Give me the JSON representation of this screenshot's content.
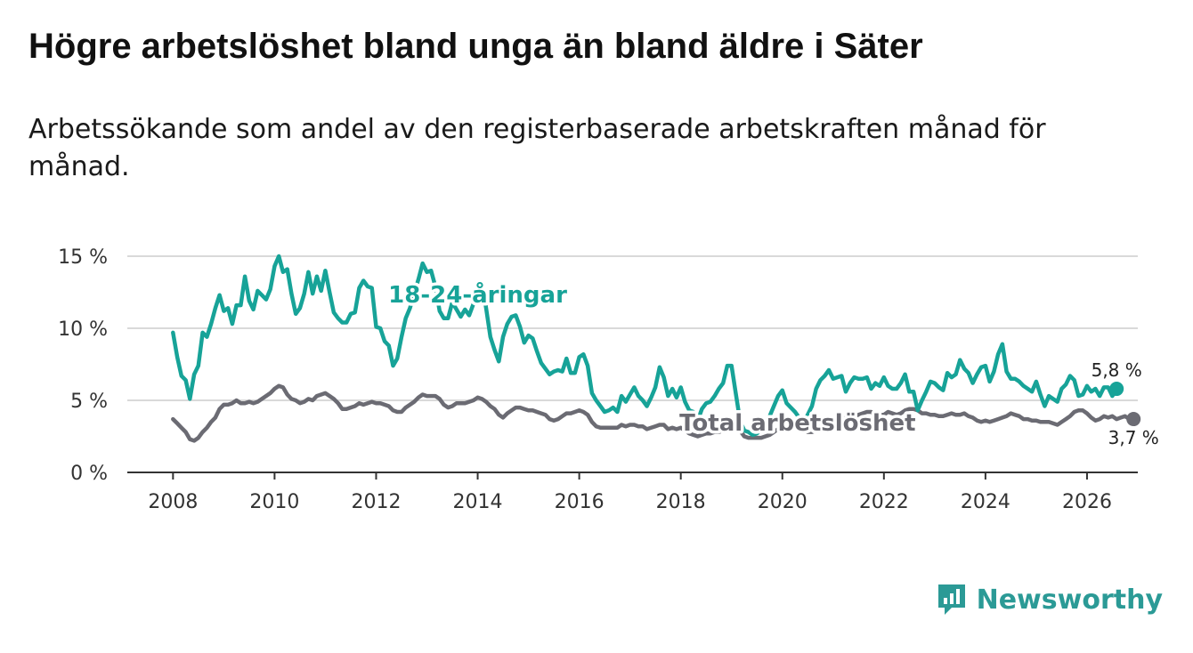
{
  "header": {
    "title": "Högre arbetslöshet bland unga än bland äldre i Säter",
    "subtitle": "Arbetssökande som andel av den registerbaserade arbetskraften månad för månad."
  },
  "brand": {
    "name": "Newsworthy",
    "icon": "newsworthy-logo-icon"
  },
  "colors": {
    "youth": "#17a398",
    "total": "#6b6b73",
    "grid": "#d9d9d9",
    "axis": "#333333"
  },
  "chart_data": {
    "type": "line",
    "title": "Högre arbetslöshet bland unga än bland äldre i Säter",
    "subtitle": "Arbetssökande som andel av den registerbaserade arbetskraften månad för månad.",
    "xlabel": "",
    "ylabel": "",
    "x_start": 2008.0,
    "x_step_years": 0.08333,
    "xlim": [
      2007.1,
      2027.0
    ],
    "ylim": [
      0,
      15
    ],
    "x_ticks": [
      {
        "value": 2008,
        "label": "2008"
      },
      {
        "value": 2010,
        "label": "2010"
      },
      {
        "value": 2012,
        "label": "2012"
      },
      {
        "value": 2014,
        "label": "2014"
      },
      {
        "value": 2016,
        "label": "2016"
      },
      {
        "value": 2018,
        "label": "2018"
      },
      {
        "value": 2020,
        "label": "2020"
      },
      {
        "value": 2022,
        "label": "2022"
      },
      {
        "value": 2024,
        "label": "2024"
      },
      {
        "value": 2026,
        "label": "2026"
      }
    ],
    "y_ticks": [
      {
        "value": 0,
        "label": "0 %"
      },
      {
        "value": 5,
        "label": "5 %"
      },
      {
        "value": 10,
        "label": "10 %"
      },
      {
        "value": 15,
        "label": "15 %"
      }
    ],
    "series": [
      {
        "name": "18-24-åringar",
        "color": "#17a398",
        "end_label": "5,8 %",
        "values": [
          9.7,
          8.0,
          6.7,
          6.4,
          5.1,
          6.8,
          7.4,
          9.7,
          9.4,
          10.3,
          11.4,
          12.3,
          11.2,
          11.4,
          10.3,
          11.6,
          11.6,
          13.6,
          11.9,
          11.3,
          12.6,
          12.3,
          12.0,
          12.7,
          14.3,
          15.0,
          13.9,
          14.1,
          12.4,
          11.0,
          11.4,
          12.4,
          13.9,
          12.4,
          13.6,
          12.6,
          14.0,
          12.5,
          11.1,
          10.7,
          10.4,
          10.4,
          11.0,
          11.1,
          12.8,
          13.3,
          12.9,
          12.8,
          10.1,
          10.0,
          9.1,
          8.8,
          7.4,
          7.9,
          9.4,
          10.7,
          11.4,
          12.4,
          13.4,
          14.5,
          13.9,
          14.0,
          12.9,
          11.2,
          10.7,
          10.7,
          11.8,
          11.3,
          10.8,
          11.3,
          10.9,
          11.7,
          13.0,
          13.1,
          11.4,
          9.4,
          8.5,
          7.7,
          9.4,
          10.3,
          10.8,
          10.9,
          10.1,
          9.0,
          9.5,
          9.3,
          8.4,
          7.6,
          7.2,
          6.8,
          7.0,
          7.1,
          7.0,
          7.9,
          6.9,
          6.9,
          8.0,
          8.2,
          7.4,
          5.5,
          5.0,
          4.6,
          4.2,
          4.3,
          4.5,
          4.2,
          5.3,
          4.9,
          5.4,
          5.9,
          5.3,
          5.0,
          4.6,
          5.2,
          5.9,
          7.3,
          6.6,
          5.3,
          5.8,
          5.2,
          5.9,
          4.9,
          4.3,
          4.2,
          3.6,
          4.4,
          4.8,
          4.9,
          5.3,
          5.8,
          6.2,
          7.4,
          7.4,
          5.5,
          3.6,
          2.9,
          2.8,
          2.6,
          2.7,
          3.0,
          3.4,
          3.9,
          4.6,
          5.3,
          5.7,
          4.8,
          4.5,
          4.2,
          3.8,
          3.5,
          4.0,
          4.6,
          5.8,
          6.4,
          6.7,
          7.1,
          6.5,
          6.6,
          6.7,
          5.6,
          6.2,
          6.6,
          6.5,
          6.5,
          6.6,
          5.8,
          6.2,
          6.0,
          6.6,
          6.0,
          5.8,
          5.8,
          6.2,
          6.8,
          5.6,
          5.6,
          4.3,
          5.0,
          5.6,
          6.3,
          6.2,
          5.9,
          5.7,
          6.9,
          6.6,
          6.8,
          7.8,
          7.2,
          6.9,
          6.2,
          6.8,
          7.3,
          7.4,
          6.3,
          7.0,
          8.2,
          8.9,
          7.0,
          6.5,
          6.5,
          6.3,
          6.0,
          5.8,
          5.6,
          6.3,
          5.4,
          4.6,
          5.3,
          5.1,
          4.9,
          5.8,
          6.1,
          6.7,
          6.4,
          5.3,
          5.4,
          6.0,
          5.6,
          5.8,
          5.3,
          5.9,
          5.9,
          5.3,
          5.8
        ]
      },
      {
        "name": "Total arbetslöshet",
        "color": "#6b6b73",
        "end_label": "3,7 %",
        "values": [
          3.7,
          3.4,
          3.1,
          2.8,
          2.3,
          2.2,
          2.4,
          2.8,
          3.1,
          3.5,
          3.8,
          4.4,
          4.7,
          4.7,
          4.8,
          5.0,
          4.8,
          4.8,
          4.9,
          4.8,
          4.9,
          5.1,
          5.3,
          5.5,
          5.8,
          6.0,
          5.9,
          5.4,
          5.1,
          5.0,
          4.8,
          4.9,
          5.1,
          5.0,
          5.3,
          5.4,
          5.5,
          5.3,
          5.1,
          4.8,
          4.4,
          4.4,
          4.5,
          4.6,
          4.8,
          4.7,
          4.8,
          4.9,
          4.8,
          4.8,
          4.7,
          4.6,
          4.3,
          4.2,
          4.2,
          4.5,
          4.7,
          4.9,
          5.2,
          5.4,
          5.3,
          5.3,
          5.3,
          5.1,
          4.7,
          4.5,
          4.6,
          4.8,
          4.8,
          4.8,
          4.9,
          5.0,
          5.2,
          5.1,
          4.9,
          4.6,
          4.4,
          4.0,
          3.8,
          4.1,
          4.3,
          4.5,
          4.5,
          4.4,
          4.3,
          4.3,
          4.2,
          4.1,
          4.0,
          3.7,
          3.6,
          3.7,
          3.9,
          4.1,
          4.1,
          4.2,
          4.3,
          4.2,
          4.0,
          3.5,
          3.2,
          3.1,
          3.1,
          3.1,
          3.1,
          3.1,
          3.3,
          3.2,
          3.3,
          3.3,
          3.2,
          3.2,
          3.0,
          3.1,
          3.2,
          3.3,
          3.3,
          3.0,
          3.1,
          3.0,
          3.1,
          2.9,
          2.7,
          2.6,
          2.5,
          2.6,
          2.7,
          2.7,
          2.8,
          2.8,
          2.9,
          3.1,
          3.3,
          3.2,
          2.9,
          2.5,
          2.4,
          2.4,
          2.4,
          2.4,
          2.5,
          2.6,
          2.8,
          3.0,
          3.2,
          3.2,
          3.2,
          3.1,
          3.0,
          2.9,
          2.8,
          2.8,
          2.9,
          3.2,
          3.5,
          3.6,
          3.7,
          3.6,
          3.7,
          3.8,
          3.7,
          3.9,
          4.0,
          4.1,
          4.2,
          4.2,
          4.0,
          4.0,
          4.0,
          4.2,
          4.1,
          4.0,
          4.1,
          4.3,
          4.4,
          4.4,
          4.3,
          4.1,
          4.1,
          4.0,
          4.0,
          3.9,
          3.9,
          4.0,
          4.1,
          4.0,
          4.0,
          4.1,
          3.9,
          3.8,
          3.6,
          3.5,
          3.6,
          3.5,
          3.6,
          3.7,
          3.8,
          3.9,
          4.1,
          4.0,
          3.9,
          3.7,
          3.7,
          3.6,
          3.6,
          3.5,
          3.5,
          3.5,
          3.4,
          3.3,
          3.5,
          3.7,
          3.9,
          4.2,
          4.3,
          4.3,
          4.1,
          3.8,
          3.6,
          3.7,
          3.9,
          3.8,
          3.9,
          3.7,
          3.8,
          3.9,
          3.7,
          3.7
        ]
      }
    ]
  }
}
